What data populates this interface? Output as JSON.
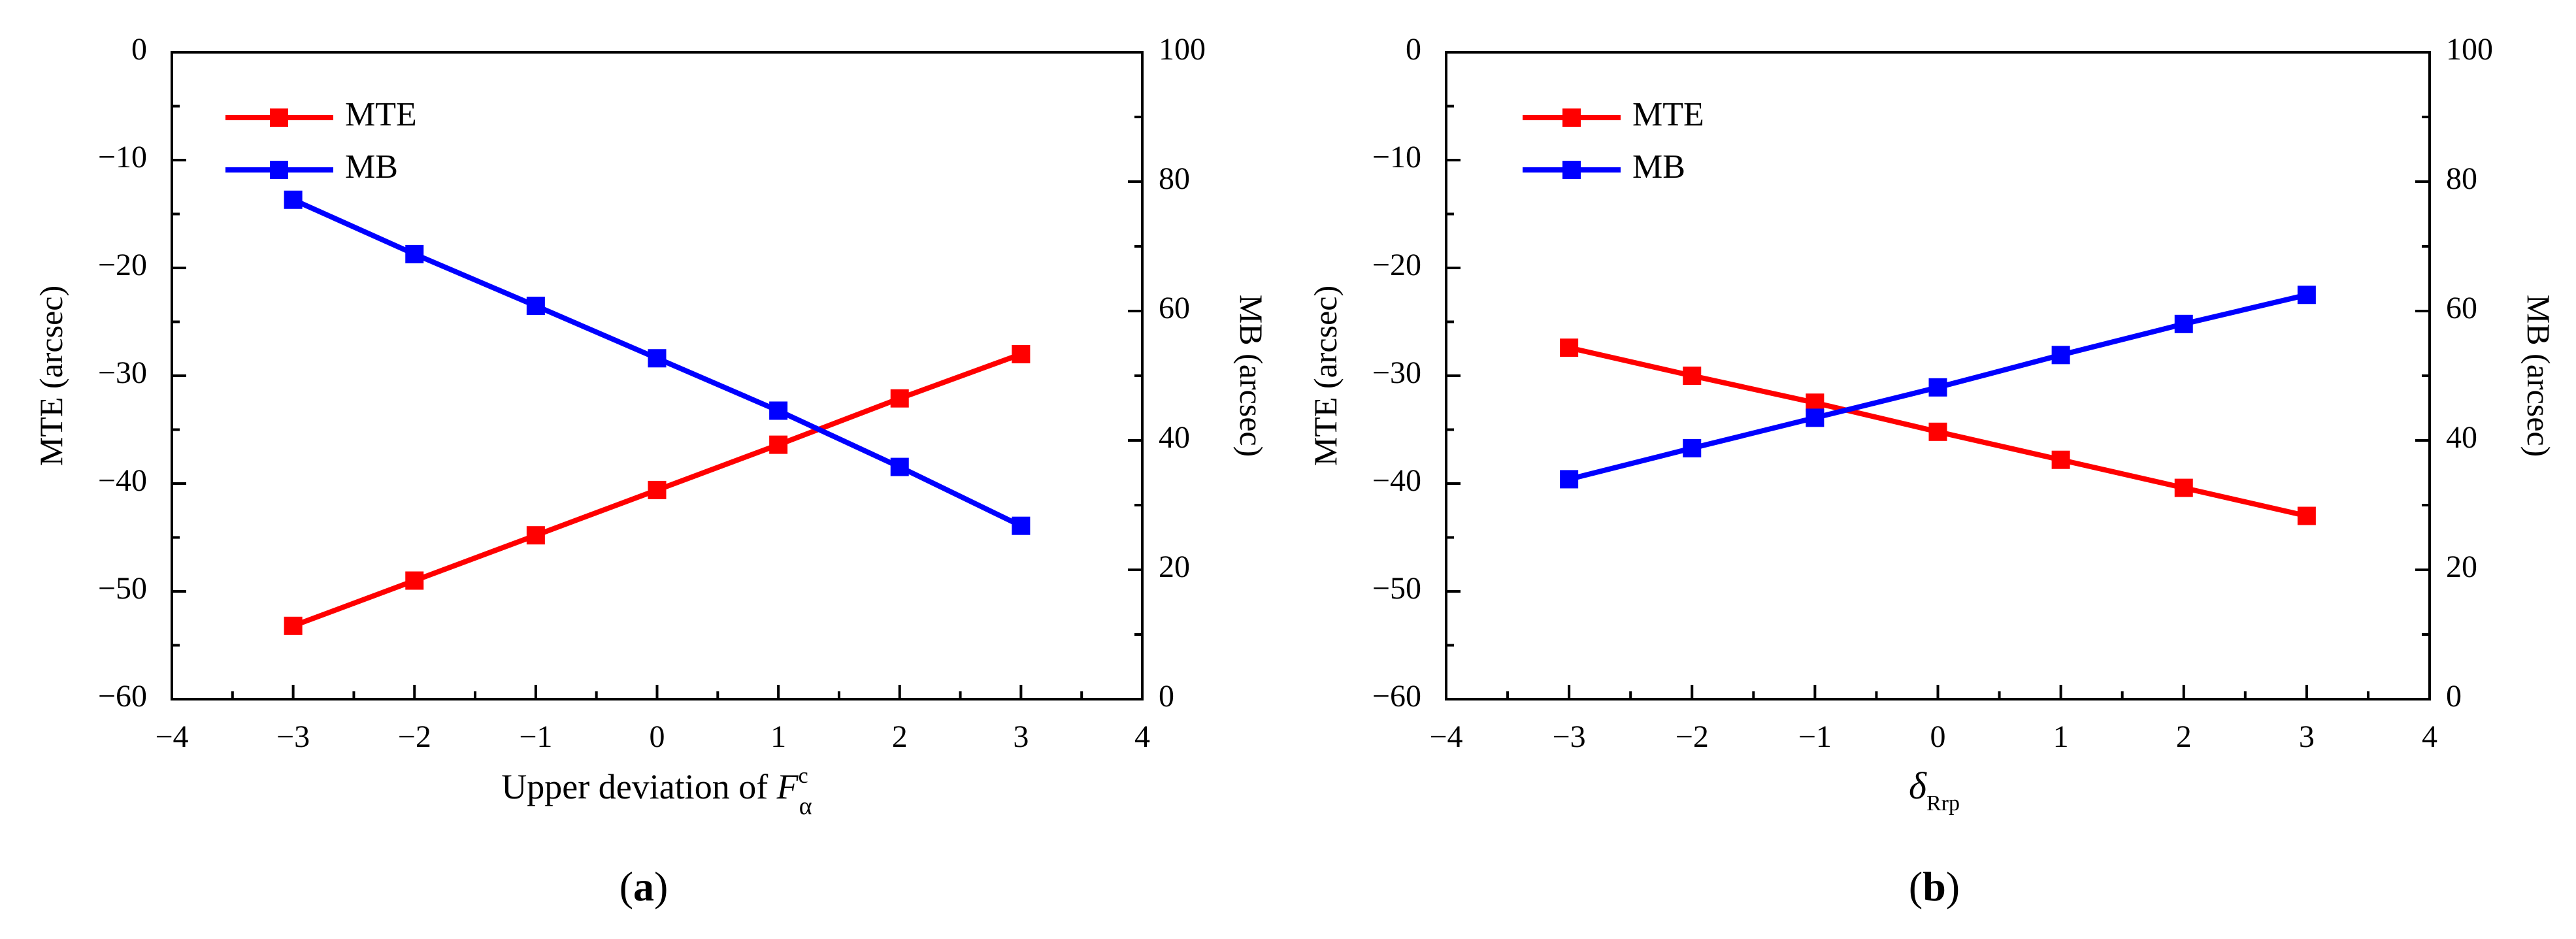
{
  "chart_data": [
    {
      "type": "line",
      "panel_label": "(a)",
      "panel_letter": "a",
      "xlabel": "Upper deviation of ",
      "xlabel_symbol": "F",
      "xlabel_sup": "c",
      "xlabel_sub": "α",
      "ylabel_left": "MTE (arcsec)",
      "ylabel_right": "MB (arcsec)",
      "xlim": [
        -4,
        4
      ],
      "ylim_left": [
        -60,
        0
      ],
      "ylim_right": [
        0,
        100
      ],
      "xticks": [
        "−4",
        "−3",
        "−2",
        "−1",
        "0",
        "1",
        "2",
        "3",
        "4"
      ],
      "yticks_left": [
        "−60",
        "−50",
        "−40",
        "−30",
        "−20",
        "−10",
        "0"
      ],
      "yticks_right": [
        "0",
        "20",
        "40",
        "60",
        "80",
        "100"
      ],
      "legend_position": "top-left",
      "x": [
        -3,
        -2,
        -1,
        0,
        1,
        2,
        3
      ],
      "series": [
        {
          "name": "MTE",
          "axis": "left",
          "color": "#ff0000",
          "values": [
            -53.2,
            -49.0,
            -44.8,
            -40.6,
            -36.4,
            -32.1,
            -28.0
          ]
        },
        {
          "name": "MB",
          "axis": "right",
          "color": "#0000ff",
          "values": [
            77.2,
            68.8,
            60.8,
            52.7,
            44.6,
            35.9,
            26.8
          ]
        }
      ]
    },
    {
      "type": "line",
      "panel_label": "(b)",
      "panel_letter": "b",
      "xlabel_symbol": "δ",
      "xlabel_sub": "Rrp",
      "ylabel_left": "MTE (arcsec)",
      "ylabel_right": "MB (arcsec)",
      "xlim": [
        -4,
        4
      ],
      "ylim_left": [
        -60,
        0
      ],
      "ylim_right": [
        0,
        100
      ],
      "xticks": [
        "−4",
        "−3",
        "−2",
        "−1",
        "0",
        "1",
        "2",
        "3",
        "4"
      ],
      "yticks_left": [
        "−60",
        "−50",
        "−40",
        "−30",
        "−20",
        "−10",
        "0"
      ],
      "yticks_right": [
        "0",
        "20",
        "40",
        "60",
        "80",
        "100"
      ],
      "legend_position": "top-left",
      "x": [
        -3,
        -2,
        -1,
        0,
        1,
        2,
        3
      ],
      "series": [
        {
          "name": "MTE",
          "axis": "left",
          "color": "#ff0000",
          "values": [
            -27.4,
            -30.0,
            -32.5,
            -35.2,
            -37.8,
            -40.4,
            -43.0
          ]
        },
        {
          "name": "MB",
          "axis": "right",
          "color": "#0000ff",
          "values": [
            34.0,
            38.8,
            43.5,
            48.2,
            53.2,
            58.0,
            62.5
          ]
        }
      ]
    }
  ]
}
